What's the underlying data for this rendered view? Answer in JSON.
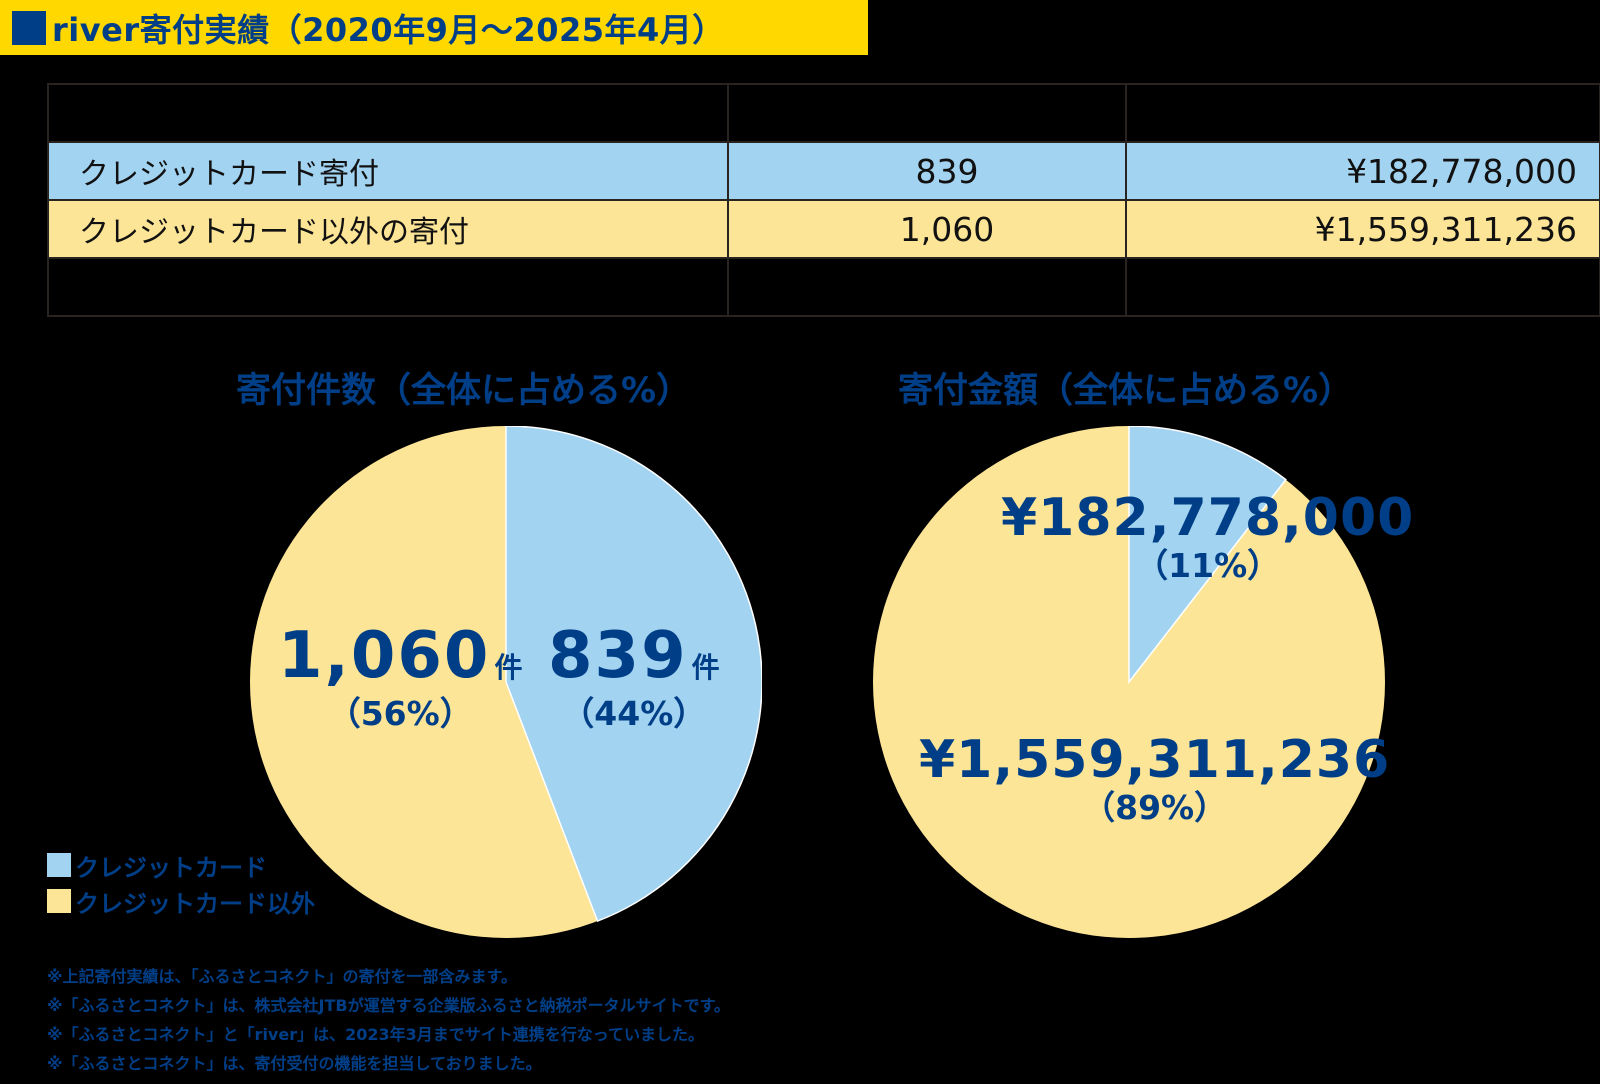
{
  "title": "river寄付実績（2020年9月〜2025年4月）",
  "colors": {
    "title_bg": "#FFD800",
    "brand_blue": "#003F87",
    "credit_card": "#A2D3F1",
    "non_credit_card": "#FDE597"
  },
  "table": {
    "rows": [
      {
        "label": "クレジットカード寄付",
        "count": "839",
        "amount": "¥182,778,000"
      },
      {
        "label": "クレジットカード以外の寄付",
        "count": "1,060",
        "amount": "¥1,559,311,236"
      }
    ]
  },
  "charts": {
    "count": {
      "title": "寄付件数（全体に占める%）",
      "credit": {
        "value": "839",
        "unit": "件",
        "pct": "（44%）"
      },
      "other": {
        "value": "1,060",
        "unit": "件",
        "pct": "（56%）"
      }
    },
    "amount": {
      "title": "寄付金額（全体に占める%）",
      "credit": {
        "value": "¥182,778,000",
        "pct": "（11%）"
      },
      "other": {
        "value": "¥1,559,311,236",
        "pct": "（89%）"
      }
    }
  },
  "legend": [
    {
      "label": "クレジットカード",
      "color": "#A2D3F1"
    },
    {
      "label": "クレジットカード以外",
      "color": "#FDE597"
    }
  ],
  "notes": [
    "※上記寄付実績は、「ふるさとコネクト」の寄付を一部含みます。",
    "※「ふるさとコネクト」は、株式会社JTBが運営する企業版ふるさと納税ポータルサイトです。",
    "※「ふるさとコネクト」と「river」は、2023年3月までサイト連携を行なっていました。",
    "※「ふるさとコネクト」は、寄付受付の機能を担当しておりました。"
  ],
  "chart_data": [
    {
      "type": "pie",
      "title": "寄付件数（全体に占める%）",
      "categories": [
        "クレジットカード",
        "クレジットカード以外"
      ],
      "values": [
        839,
        1060
      ],
      "percentages": [
        44,
        56
      ],
      "unit": "件",
      "legend_position": "bottom-left"
    },
    {
      "type": "pie",
      "title": "寄付金額（全体に占める%）",
      "categories": [
        "クレジットカード",
        "クレジットカード以外"
      ],
      "values": [
        182778000,
        1559311236
      ],
      "percentages": [
        11,
        89
      ],
      "unit": "¥"
    }
  ]
}
